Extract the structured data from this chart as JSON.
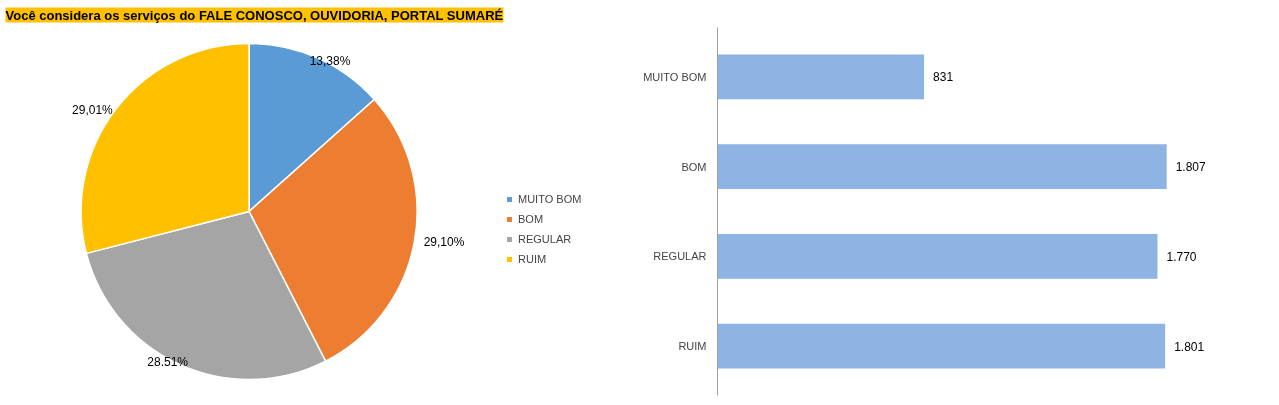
{
  "chart_data": [
    {
      "type": "pie",
      "title": "Você considera os serviços do FALE CONOSCO, OUVIDORIA, PORTAL SUMARÉ",
      "categories": [
        "MUITO BOM",
        "BOM",
        "REGULAR",
        "RUIM"
      ],
      "values": [
        13.38,
        29.1,
        28.51,
        29.01
      ],
      "colors": [
        "#5b9bd5",
        "#ed7d31",
        "#a5a5a5",
        "#ffc000"
      ],
      "value_labels": [
        "13,38%",
        "29,10%",
        "28.51%",
        "29,01%"
      ],
      "legend": "right"
    },
    {
      "type": "bar",
      "orientation": "horizontal",
      "categories": [
        "MUITO BOM",
        "BOM",
        "REGULAR",
        "RUIM"
      ],
      "values": [
        831,
        1807,
        1770,
        1801
      ],
      "color": "#8db4e2",
      "value_labels": [
        "831",
        "1.807",
        "1.770",
        "1.801"
      ],
      "grid": false
    }
  ]
}
